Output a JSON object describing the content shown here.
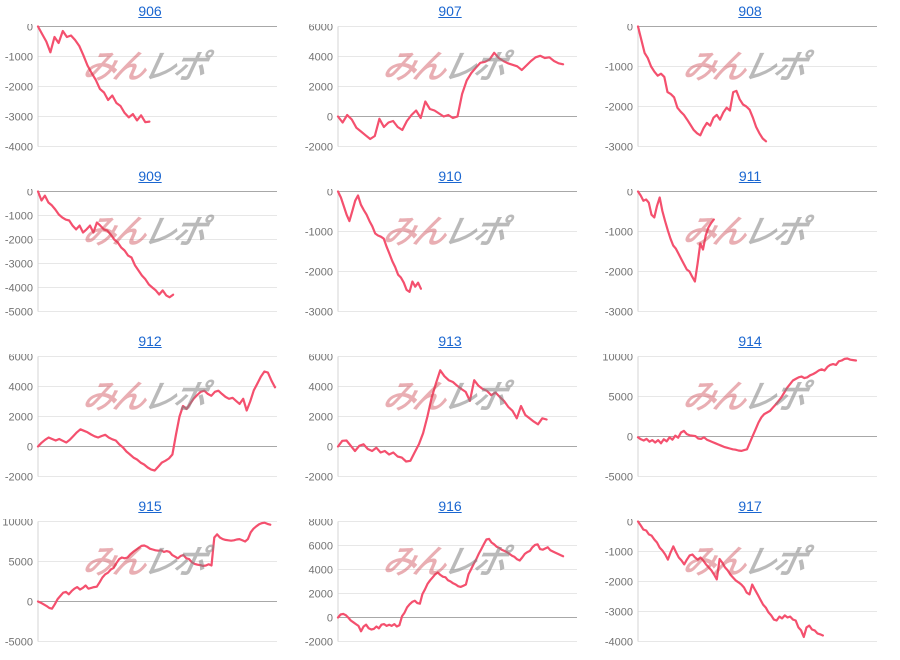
{
  "watermark": {
    "red_text": "みん",
    "gray_text": "レポ"
  },
  "colors": {
    "line": "#f4506e",
    "link": "#1a66d0",
    "tick_label": "#737373",
    "grid_line": "#e7e7e7",
    "zero_line": "#a8a8a8",
    "axis_line": "#d5d5d5",
    "watermark_red": "#cd414b",
    "watermark_gray": "#828282"
  },
  "chart_data": [
    {
      "type": "line",
      "title": "906",
      "ylim": [
        -4000,
        0
      ],
      "yticks": [
        0,
        -1000,
        -2000,
        -3000,
        -4000
      ],
      "x_span": 0.47,
      "values": [
        0,
        -250,
        -500,
        -860,
        -350,
        -550,
        -150,
        -350,
        -300,
        -450,
        -650,
        -960,
        -1300,
        -1550,
        -1780,
        -2080,
        -2200,
        -2450,
        -2300,
        -2550,
        -2650,
        -2880,
        -3030,
        -2920,
        -3130,
        -2960,
        -3190,
        -3170
      ]
    },
    {
      "type": "line",
      "title": "907",
      "ylim": [
        -2000,
        6000
      ],
      "yticks": [
        6000,
        4000,
        2000,
        0,
        -2000
      ],
      "x_span": 0.95,
      "values": [
        0,
        -400,
        100,
        -200,
        -750,
        -1000,
        -1250,
        -1500,
        -1300,
        -150,
        -700,
        -400,
        -300,
        -700,
        -900,
        -300,
        100,
        400,
        -100,
        1000,
        500,
        400,
        200,
        0,
        100,
        -100,
        0,
        1500,
        2400,
        2900,
        3250,
        3580,
        3650,
        3800,
        4250,
        3900,
        3700,
        3550,
        3450,
        3350,
        3100,
        3400,
        3700,
        3950,
        4050,
        3900,
        3950,
        3700,
        3550,
        3480
      ]
    },
    {
      "type": "line",
      "title": "908",
      "ylim": [
        -3000,
        0
      ],
      "yticks": [
        0,
        -1000,
        -2000,
        -3000
      ],
      "x_span": 0.54,
      "values": [
        0,
        -330,
        -660,
        -790,
        -1000,
        -1130,
        -1230,
        -1180,
        -1260,
        -1640,
        -1690,
        -1770,
        -2030,
        -2130,
        -2210,
        -2330,
        -2460,
        -2590,
        -2670,
        -2720,
        -2540,
        -2410,
        -2480,
        -2280,
        -2210,
        -2330,
        -2150,
        -2030,
        -2100,
        -1640,
        -1610,
        -1820,
        -1950,
        -2000,
        -2080,
        -2280,
        -2510,
        -2670,
        -2800,
        -2870
      ]
    },
    {
      "type": "line",
      "title": "909",
      "ylim": [
        -5000,
        0
      ],
      "yticks": [
        0,
        -1000,
        -2000,
        -3000,
        -4000,
        -5000
      ],
      "x_span": 0.57,
      "values": [
        0,
        -375,
        -170,
        -460,
        -580,
        -750,
        -960,
        -1080,
        -1170,
        -1210,
        -1420,
        -1580,
        -1420,
        -1710,
        -1580,
        -1420,
        -1710,
        -1290,
        -1420,
        -1580,
        -1630,
        -1790,
        -2000,
        -2120,
        -2330,
        -2460,
        -2670,
        -2750,
        -3080,
        -3290,
        -3500,
        -3660,
        -3870,
        -4000,
        -4120,
        -4290,
        -4120,
        -4330,
        -4410,
        -4300
      ]
    },
    {
      "type": "line",
      "title": "910",
      "ylim": [
        -3000,
        0
      ],
      "yticks": [
        0,
        -1000,
        -2000,
        -3000
      ],
      "x_span": 0.35,
      "values": [
        0,
        -150,
        -360,
        -580,
        -740,
        -490,
        -230,
        -100,
        -330,
        -460,
        -580,
        -740,
        -870,
        -1050,
        -1100,
        -1130,
        -1180,
        -1380,
        -1560,
        -1740,
        -1890,
        -2080,
        -2150,
        -2280,
        -2460,
        -2510,
        -2250,
        -2380,
        -2280,
        -2430
      ]
    },
    {
      "type": "line",
      "title": "911",
      "ylim": [
        -3000,
        0
      ],
      "yticks": [
        0,
        -1000,
        -2000,
        -3000
      ],
      "x_span": 0.32,
      "values": [
        0,
        -100,
        -230,
        -200,
        -280,
        -580,
        -650,
        -360,
        -150,
        -490,
        -740,
        -970,
        -1180,
        -1350,
        -1430,
        -1560,
        -1690,
        -1820,
        -1950,
        -2000,
        -2130,
        -2250,
        -1800,
        -1300,
        -1450,
        -1100,
        -900,
        -790,
        -700
      ]
    },
    {
      "type": "line",
      "title": "912",
      "ylim": [
        -2000,
        6000
      ],
      "yticks": [
        6000,
        4000,
        2000,
        0,
        -2000
      ],
      "x_span": 1.0,
      "values": [
        0,
        250,
        450,
        600,
        500,
        400,
        500,
        380,
        270,
        450,
        700,
        950,
        1150,
        1050,
        950,
        800,
        680,
        600,
        700,
        780,
        600,
        480,
        400,
        130,
        -60,
        -330,
        -530,
        -740,
        -870,
        -1070,
        -1200,
        -1400,
        -1540,
        -1600,
        -1340,
        -1070,
        -950,
        -800,
        -530,
        800,
        2000,
        2700,
        2500,
        2840,
        3180,
        3430,
        3650,
        3720,
        3510,
        3380,
        3650,
        3720,
        3510,
        3310,
        3180,
        3250,
        3040,
        2840,
        3180,
        2400,
        3000,
        3750,
        4190,
        4660,
        5000,
        4930,
        4390,
        3950
      ]
    },
    {
      "type": "line",
      "title": "913",
      "ylim": [
        -2000,
        6000
      ],
      "yticks": [
        6000,
        4000,
        2000,
        0,
        -2000
      ],
      "x_span": 0.88,
      "values": [
        0,
        380,
        400,
        50,
        -300,
        50,
        150,
        -170,
        -300,
        -80,
        -400,
        -300,
        -530,
        -400,
        -670,
        -740,
        -1000,
        -950,
        -400,
        150,
        890,
        1990,
        3240,
        4200,
        5080,
        4690,
        4420,
        4300,
        4050,
        3830,
        3640,
        3040,
        4420,
        4050,
        3830,
        3710,
        3420,
        3600,
        3310,
        3040,
        2640,
        2380,
        1880,
        2700,
        2100,
        1880,
        1660,
        1480,
        1880,
        1800
      ]
    },
    {
      "type": "line",
      "title": "914",
      "ylim": [
        -5000,
        10000
      ],
      "yticks": [
        10000,
        5000,
        0,
        -5000
      ],
      "x_span": 0.92,
      "values": [
        -100,
        -350,
        -500,
        -300,
        -650,
        -450,
        -750,
        -450,
        -850,
        -350,
        -600,
        -100,
        -400,
        100,
        -150,
        500,
        700,
        300,
        150,
        100,
        50,
        -250,
        -300,
        -100,
        -400,
        -550,
        -700,
        -850,
        -1000,
        -1150,
        -1300,
        -1400,
        -1500,
        -1600,
        -1650,
        -1750,
        -1800,
        -1700,
        -1600,
        -750,
        100,
        900,
        1750,
        2400,
        2800,
        3000,
        3200,
        3600,
        4000,
        4450,
        4900,
        5500,
        6100,
        6550,
        7000,
        7200,
        7400,
        7500,
        7300,
        7400,
        7650,
        7800,
        8000,
        8250,
        8400,
        8250,
        8700,
        8950,
        9050,
        8950,
        9400,
        9500,
        9700,
        9750,
        9600,
        9550,
        9500
      ]
    },
    {
      "type": "line",
      "title": "915",
      "ylim": [
        -5000,
        10000
      ],
      "yticks": [
        10000,
        5000,
        0,
        -5000
      ],
      "x_span": 0.98,
      "values": [
        0,
        -150,
        -350,
        -550,
        -800,
        -900,
        -350,
        300,
        700,
        1100,
        1200,
        900,
        1300,
        1600,
        1800,
        1500,
        1700,
        2000,
        1600,
        1700,
        1800,
        1850,
        2400,
        3000,
        3400,
        3600,
        4000,
        4200,
        4800,
        5300,
        5500,
        5400,
        5500,
        5900,
        6200,
        6450,
        6700,
        6950,
        7000,
        6850,
        6600,
        6500,
        6400,
        6350,
        6400,
        6200,
        6300,
        6200,
        5800,
        5600,
        5400,
        5700,
        5800,
        5400,
        5300,
        4900,
        4700,
        4600,
        4550,
        4450,
        4500,
        4650,
        4500,
        8000,
        8400,
        8000,
        7800,
        7700,
        7650,
        7600,
        7650,
        7750,
        7800,
        7650,
        7500,
        7800,
        8650,
        9100,
        9400,
        9650,
        9800,
        9850,
        9700,
        9600
      ]
    },
    {
      "type": "line",
      "title": "916",
      "ylim": [
        -2000,
        8000
      ],
      "yticks": [
        8000,
        6000,
        4000,
        2000,
        0,
        -2000
      ],
      "x_span": 0.95,
      "values": [
        0,
        250,
        300,
        200,
        0,
        -250,
        -400,
        -550,
        -700,
        -1150,
        -750,
        -600,
        -900,
        -1000,
        -950,
        -750,
        -900,
        -600,
        -550,
        -700,
        -600,
        -700,
        -550,
        -750,
        -650,
        100,
        400,
        850,
        1100,
        1300,
        1400,
        1200,
        1150,
        1950,
        2350,
        2800,
        3100,
        3350,
        3600,
        3750,
        3550,
        3400,
        3350,
        3100,
        3000,
        2850,
        2750,
        2600,
        2550,
        2650,
        2750,
        3600,
        4000,
        4450,
        4850,
        5300,
        5700,
        6100,
        6500,
        6550,
        6250,
        6100,
        5900,
        5800,
        5650,
        5550,
        5450,
        5300,
        5150,
        5050,
        4850,
        4750,
        5000,
        5300,
        5450,
        5550,
        5850,
        6050,
        6100,
        5700,
        5650,
        5750,
        5850,
        5600,
        5500,
        5400,
        5300,
        5200,
        5100
      ]
    },
    {
      "type": "line",
      "title": "917",
      "ylim": [
        -4000,
        0
      ],
      "yticks": [
        0,
        -1000,
        -2000,
        -3000,
        -4000
      ],
      "x_span": 0.78,
      "values": [
        0,
        -130,
        -270,
        -300,
        -430,
        -470,
        -600,
        -700,
        -870,
        -970,
        -1100,
        -1270,
        -1030,
        -830,
        -1030,
        -1200,
        -1300,
        -1430,
        -1270,
        -1130,
        -1100,
        -1200,
        -1270,
        -1200,
        -1300,
        -1430,
        -1530,
        -1630,
        -1770,
        -1930,
        -1250,
        -1370,
        -1530,
        -1630,
        -1770,
        -1870,
        -1970,
        -2030,
        -2100,
        -2200,
        -2370,
        -2430,
        -2100,
        -2270,
        -2430,
        -2600,
        -2770,
        -2870,
        -3030,
        -3130,
        -3270,
        -3300,
        -3170,
        -3230,
        -3130,
        -3200,
        -3170,
        -3270,
        -3300,
        -3530,
        -3630,
        -3850,
        -3530,
        -3470,
        -3600,
        -3630,
        -3730,
        -3760,
        -3800
      ]
    }
  ]
}
